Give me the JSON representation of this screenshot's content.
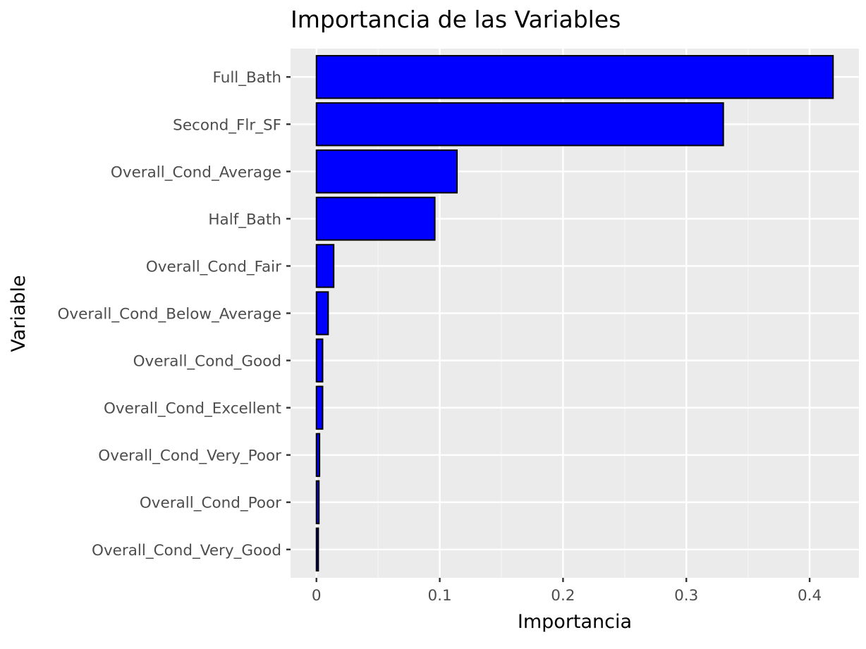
{
  "chart_data": {
    "type": "bar",
    "orientation": "horizontal",
    "title": "Importancia de las Variables",
    "xlabel": "Importancia",
    "ylabel": "Variable",
    "categories": [
      "Full_Bath",
      "Second_Flr_SF",
      "Overall_Cond_Average",
      "Half_Bath",
      "Overall_Cond_Fair",
      "Overall_Cond_Below_Average",
      "Overall_Cond_Good",
      "Overall_Cond_Excellent",
      "Overall_Cond_Very_Poor",
      "Overall_Cond_Poor",
      "Overall_Cond_Very_Good"
    ],
    "values": [
      0.419,
      0.33,
      0.114,
      0.096,
      0.014,
      0.0095,
      0.005,
      0.005,
      0.0025,
      0.002,
      0.0015
    ],
    "xlim": [
      -0.021,
      0.44
    ],
    "xticks": [
      0,
      0.1,
      0.2,
      0.3,
      0.4
    ],
    "xtick_labels": [
      "0",
      "0.1",
      "0.2",
      "0.3",
      "0.4"
    ],
    "grid": true,
    "colors": {
      "bar_fill": "#0000ff",
      "bar_stroke": "#000000",
      "panel_background": "#ebebeb",
      "grid_major": "#ffffff",
      "grid_minor": "#f5f5f5",
      "tick_text": "#4d4d4d",
      "tick_mark": "#333333"
    }
  }
}
